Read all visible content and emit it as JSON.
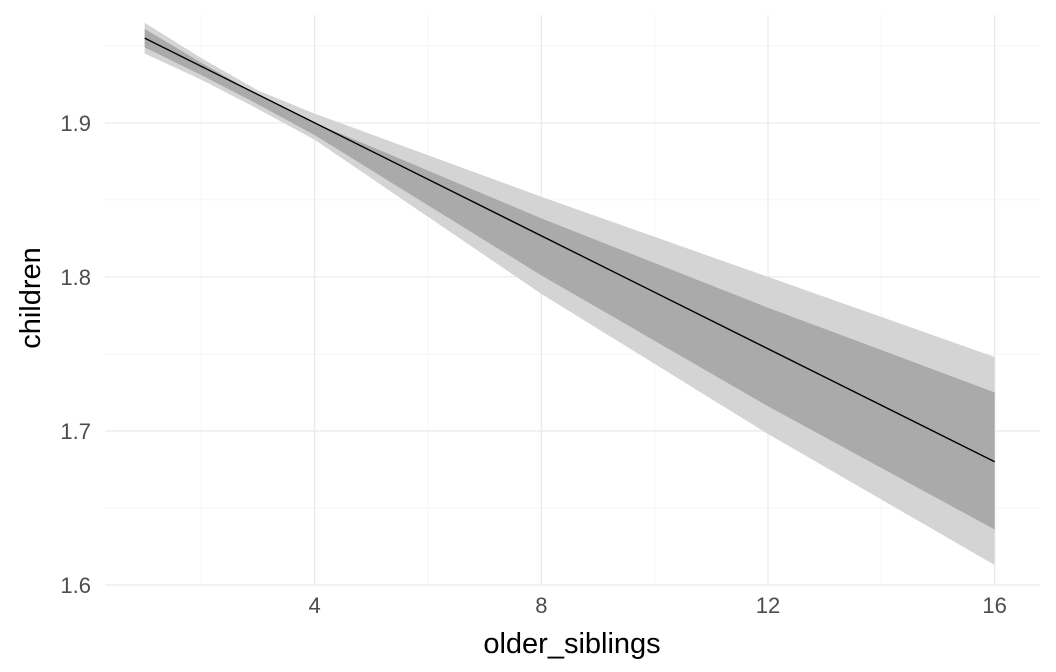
{
  "chart_data": {
    "type": "line",
    "title": "",
    "xlabel": "older_siblings",
    "ylabel": "children",
    "xlim": [
      0.3,
      16.8
    ],
    "ylim": [
      1.6,
      1.97
    ],
    "x_ticks": [
      4,
      8,
      12,
      16
    ],
    "y_ticks": [
      1.6,
      1.7,
      1.8,
      1.9
    ],
    "x_tick_labels": [
      "4",
      "8",
      "12",
      "16"
    ],
    "y_tick_labels": [
      "1.6",
      "1.7",
      "1.8",
      "1.9"
    ],
    "grid": true,
    "legend": "none",
    "series": [
      {
        "x": [
          1,
          16
        ],
        "y": [
          1.955,
          1.68
        ],
        "line_color": "#000000"
      }
    ],
    "ribbons": [
      {
        "x": [
          1,
          2,
          3,
          4,
          8,
          12,
          16
        ],
        "lower": [
          1.945,
          1.928,
          1.909,
          1.889,
          1.789,
          1.698,
          1.613
        ],
        "upper": [
          1.965,
          1.942,
          1.921,
          1.906,
          1.852,
          1.8,
          1.748
        ],
        "color": "#d4d4d4"
      },
      {
        "x": [
          1,
          2,
          3,
          4,
          8,
          12,
          16
        ],
        "lower": [
          1.949,
          1.931,
          1.912,
          1.892,
          1.801,
          1.716,
          1.636
        ],
        "upper": [
          1.961,
          1.939,
          1.918,
          1.9,
          1.838,
          1.78,
          1.725
        ],
        "color": "#aaaaaa"
      }
    ]
  }
}
